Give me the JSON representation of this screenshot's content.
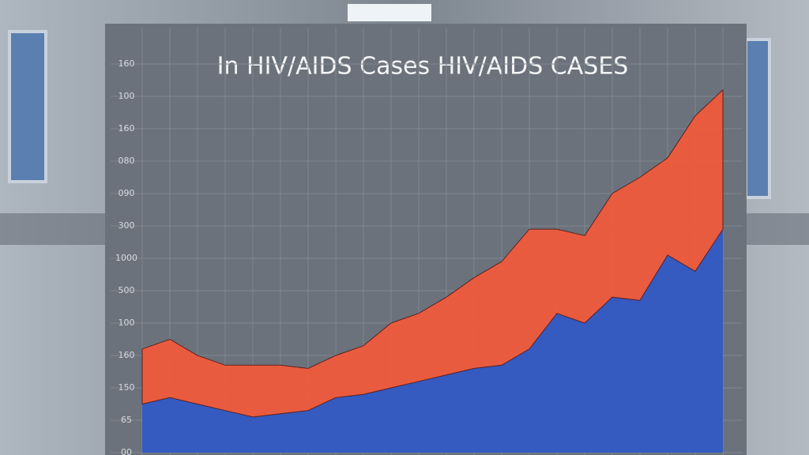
{
  "chart_data": {
    "type": "stacked-area",
    "title": "In HIV/AIDS Cases HIV/AIDS CASES",
    "x": [
      0,
      1,
      2,
      3,
      4,
      5,
      6,
      7,
      8,
      9,
      10,
      11,
      12,
      13,
      14,
      15,
      16,
      17,
      18,
      19,
      20,
      21
    ],
    "xlim": [
      0,
      21
    ],
    "ylim": [
      0,
      13
    ],
    "yticks": [
      {
        "value": 0,
        "label": "00"
      },
      {
        "value": 1,
        "label": "65"
      },
      {
        "value": 2,
        "label": "150"
      },
      {
        "value": 3,
        "label": "160"
      },
      {
        "value": 4,
        "label": "100"
      },
      {
        "value": 5,
        "label": "500"
      },
      {
        "value": 6,
        "label": "1000"
      },
      {
        "value": 7,
        "label": "300"
      },
      {
        "value": 8,
        "label": "090"
      },
      {
        "value": 9,
        "label": "080"
      },
      {
        "value": 10,
        "label": "160"
      },
      {
        "value": 11,
        "label": "100"
      },
      {
        "value": 12,
        "label": "160"
      }
    ],
    "grid": true,
    "series": [
      {
        "color": "#3358c4",
        "values": [
          1.5,
          1.7,
          1.5,
          1.3,
          1.1,
          1.2,
          1.3,
          1.7,
          1.8,
          2.0,
          2.2,
          2.4,
          2.6,
          2.7,
          3.2,
          4.3,
          4.0,
          4.8,
          4.7,
          6.1,
          5.6,
          6.9
        ]
      },
      {
        "color": "#f05a3c",
        "values": [
          1.7,
          1.8,
          1.5,
          1.4,
          1.6,
          1.5,
          1.3,
          1.3,
          1.5,
          2.0,
          2.1,
          2.4,
          2.8,
          3.2,
          3.7,
          2.6,
          2.7,
          3.2,
          3.8,
          3.0,
          4.8,
          4.3
        ]
      }
    ]
  }
}
